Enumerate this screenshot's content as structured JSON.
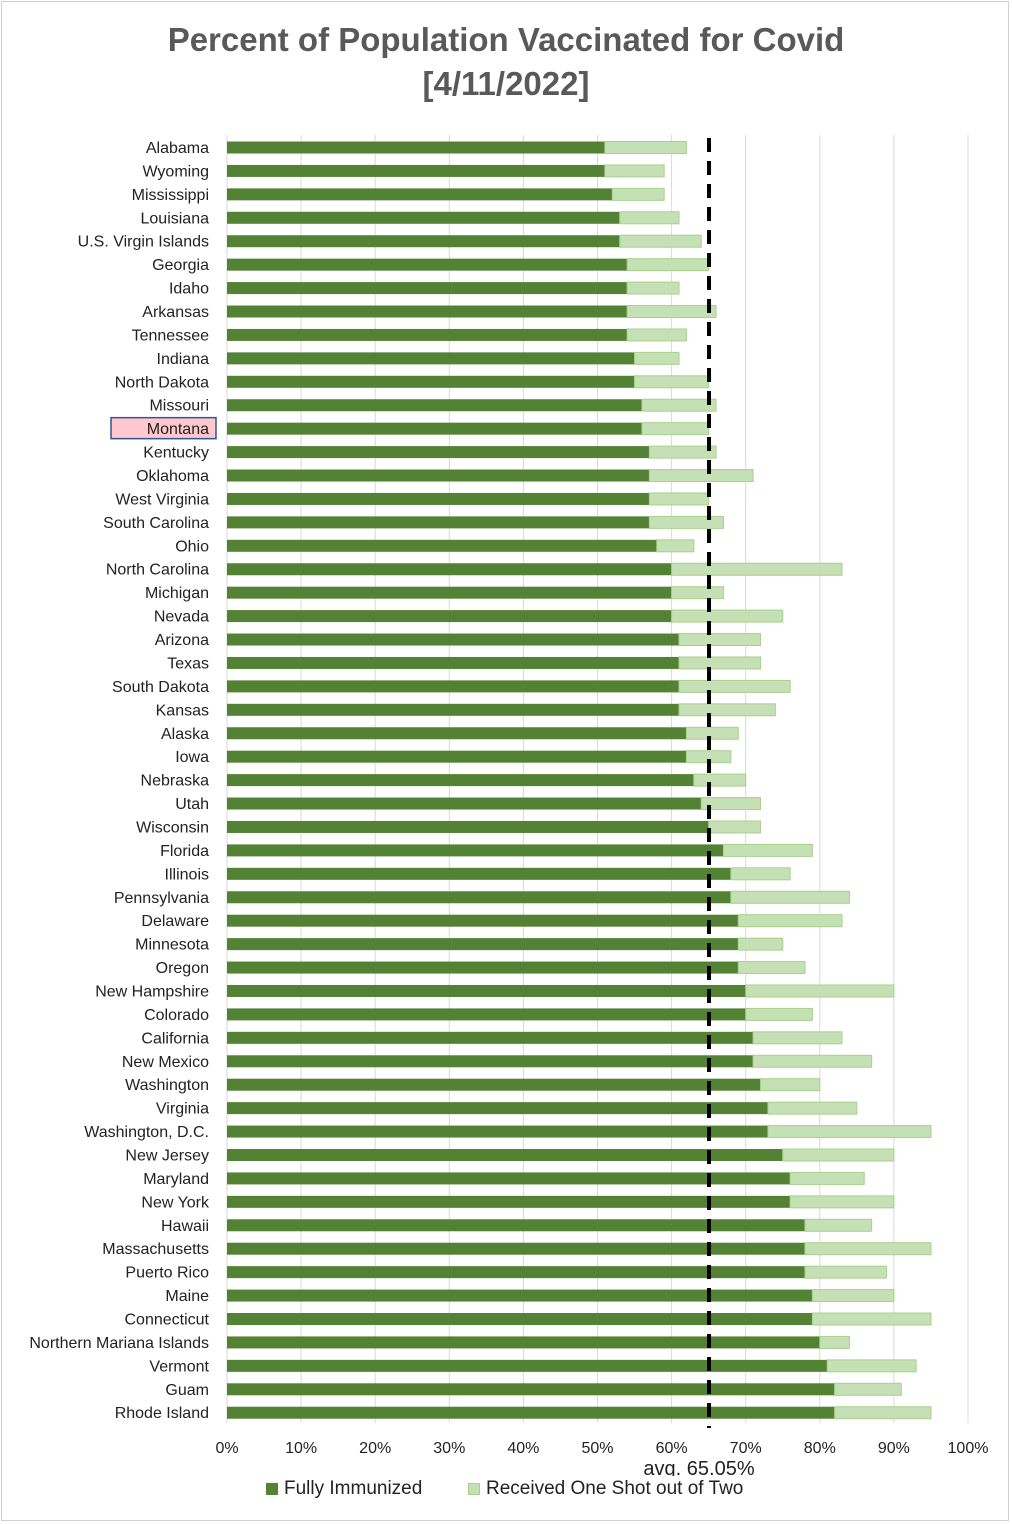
{
  "chart_data": {
    "type": "bar",
    "orientation": "horizontal",
    "stacked": true,
    "title_line1": "Percent of Population Vaccinated for Covid",
    "title_line2": "[4/11/2022]",
    "categories": [
      "Alabama",
      "Wyoming",
      "Mississippi",
      "Louisiana",
      "U.S. Virgin Islands",
      "Georgia",
      "Idaho",
      "Arkansas",
      "Tennessee",
      "Indiana",
      "North Dakota",
      "Missouri",
      "Montana",
      "Kentucky",
      "Oklahoma",
      "West Virginia",
      "South Carolina",
      "Ohio",
      "North Carolina",
      "Michigan",
      "Nevada",
      "Arizona",
      "Texas",
      "South Dakota",
      "Kansas",
      "Alaska",
      "Iowa",
      "Nebraska",
      "Utah",
      "Wisconsin",
      "Florida",
      "Illinois",
      "Pennsylvania",
      "Delaware",
      "Minnesota",
      "Oregon",
      "New Hampshire",
      "Colorado",
      "California",
      "New Mexico",
      "Washington",
      "Virginia",
      "Washington, D.C.",
      "New Jersey",
      "Maryland",
      "New York",
      "Hawaii",
      "Massachusetts",
      "Puerto Rico",
      "Maine",
      "Connecticut",
      "Northern Mariana Islands",
      "Vermont",
      "Guam",
      "Rhode Island"
    ],
    "highlight_category": "Montana",
    "series": [
      {
        "name": "Fully Immunized",
        "color": "#548235",
        "values": [
          51,
          51,
          52,
          53,
          53,
          54,
          54,
          54,
          54,
          55,
          55,
          56,
          56,
          57,
          57,
          57,
          57,
          58,
          60,
          60,
          60,
          61,
          61,
          61,
          61,
          62,
          62,
          63,
          64,
          65,
          67,
          68,
          68,
          69,
          69,
          69,
          70,
          70,
          71,
          71,
          72,
          73,
          73,
          75,
          76,
          76,
          78,
          78,
          78,
          79,
          79,
          80,
          81,
          82,
          82
        ]
      },
      {
        "name": "Received One Shot out of Two",
        "color": "#c5e0b4",
        "values": [
          11,
          8,
          7,
          8,
          11,
          11,
          7,
          12,
          8,
          6,
          10,
          10,
          9,
          9,
          14,
          8,
          10,
          5,
          23,
          7,
          15,
          11,
          11,
          15,
          13,
          7,
          6,
          7,
          8,
          7,
          12,
          8,
          16,
          14,
          6,
          9,
          20,
          9,
          12,
          16,
          8,
          12,
          22,
          15,
          10,
          14,
          9,
          17,
          11,
          11,
          16,
          4,
          12,
          9,
          13
        ]
      }
    ],
    "xlim": [
      0,
      100
    ],
    "x_ticks": [
      "0%",
      "10%",
      "20%",
      "30%",
      "40%",
      "50%",
      "60%",
      "70%",
      "80%",
      "90%",
      "100%"
    ],
    "average": {
      "value": 65.05,
      "label": "avg. 65.05%"
    },
    "grid": "vertical",
    "legend_position": "bottom"
  }
}
